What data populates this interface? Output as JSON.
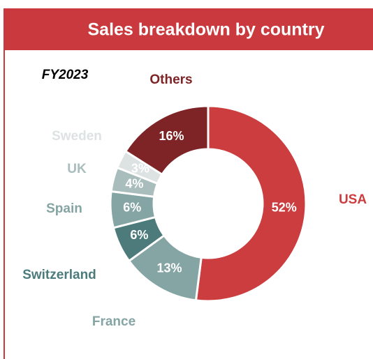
{
  "chart_data": {
    "type": "donut",
    "title": "Sales breakdown by country",
    "subtitle": "FY2023",
    "categories": [
      "USA",
      "France",
      "Switzerland",
      "Spain",
      "UK",
      "Sweden",
      "Others"
    ],
    "values": [
      52,
      13,
      6,
      6,
      4,
      3,
      16
    ],
    "value_labels": [
      "52%",
      "13%",
      "6%",
      "6%",
      "4%",
      "3%",
      "16%"
    ],
    "colors": [
      "#cc3d40",
      "#85a4a4",
      "#4d7b7c",
      "#85a4a4",
      "#a9bdbd",
      "#dde3e3",
      "#7e2426"
    ]
  }
}
